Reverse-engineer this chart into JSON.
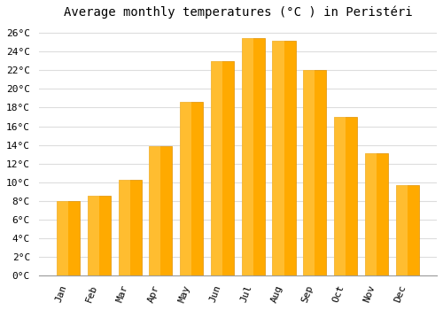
{
  "title": "Average monthly temperatures (°C ) in Peristéri",
  "months": [
    "Jan",
    "Feb",
    "Mar",
    "Apr",
    "May",
    "Jun",
    "Jul",
    "Aug",
    "Sep",
    "Oct",
    "Nov",
    "Dec"
  ],
  "values": [
    8.0,
    8.5,
    10.3,
    13.9,
    18.6,
    23.0,
    25.5,
    25.2,
    22.0,
    17.0,
    13.1,
    9.7
  ],
  "bar_color": "#FFAA00",
  "bar_edge_color": "#E09000",
  "background_color": "#FFFFFF",
  "grid_color": "#DDDDDD",
  "ylim": [
    0,
    27
  ],
  "yticks": [
    0,
    2,
    4,
    6,
    8,
    10,
    12,
    14,
    16,
    18,
    20,
    22,
    24,
    26
  ],
  "title_fontsize": 10,
  "tick_fontsize": 8,
  "font_family": "monospace"
}
